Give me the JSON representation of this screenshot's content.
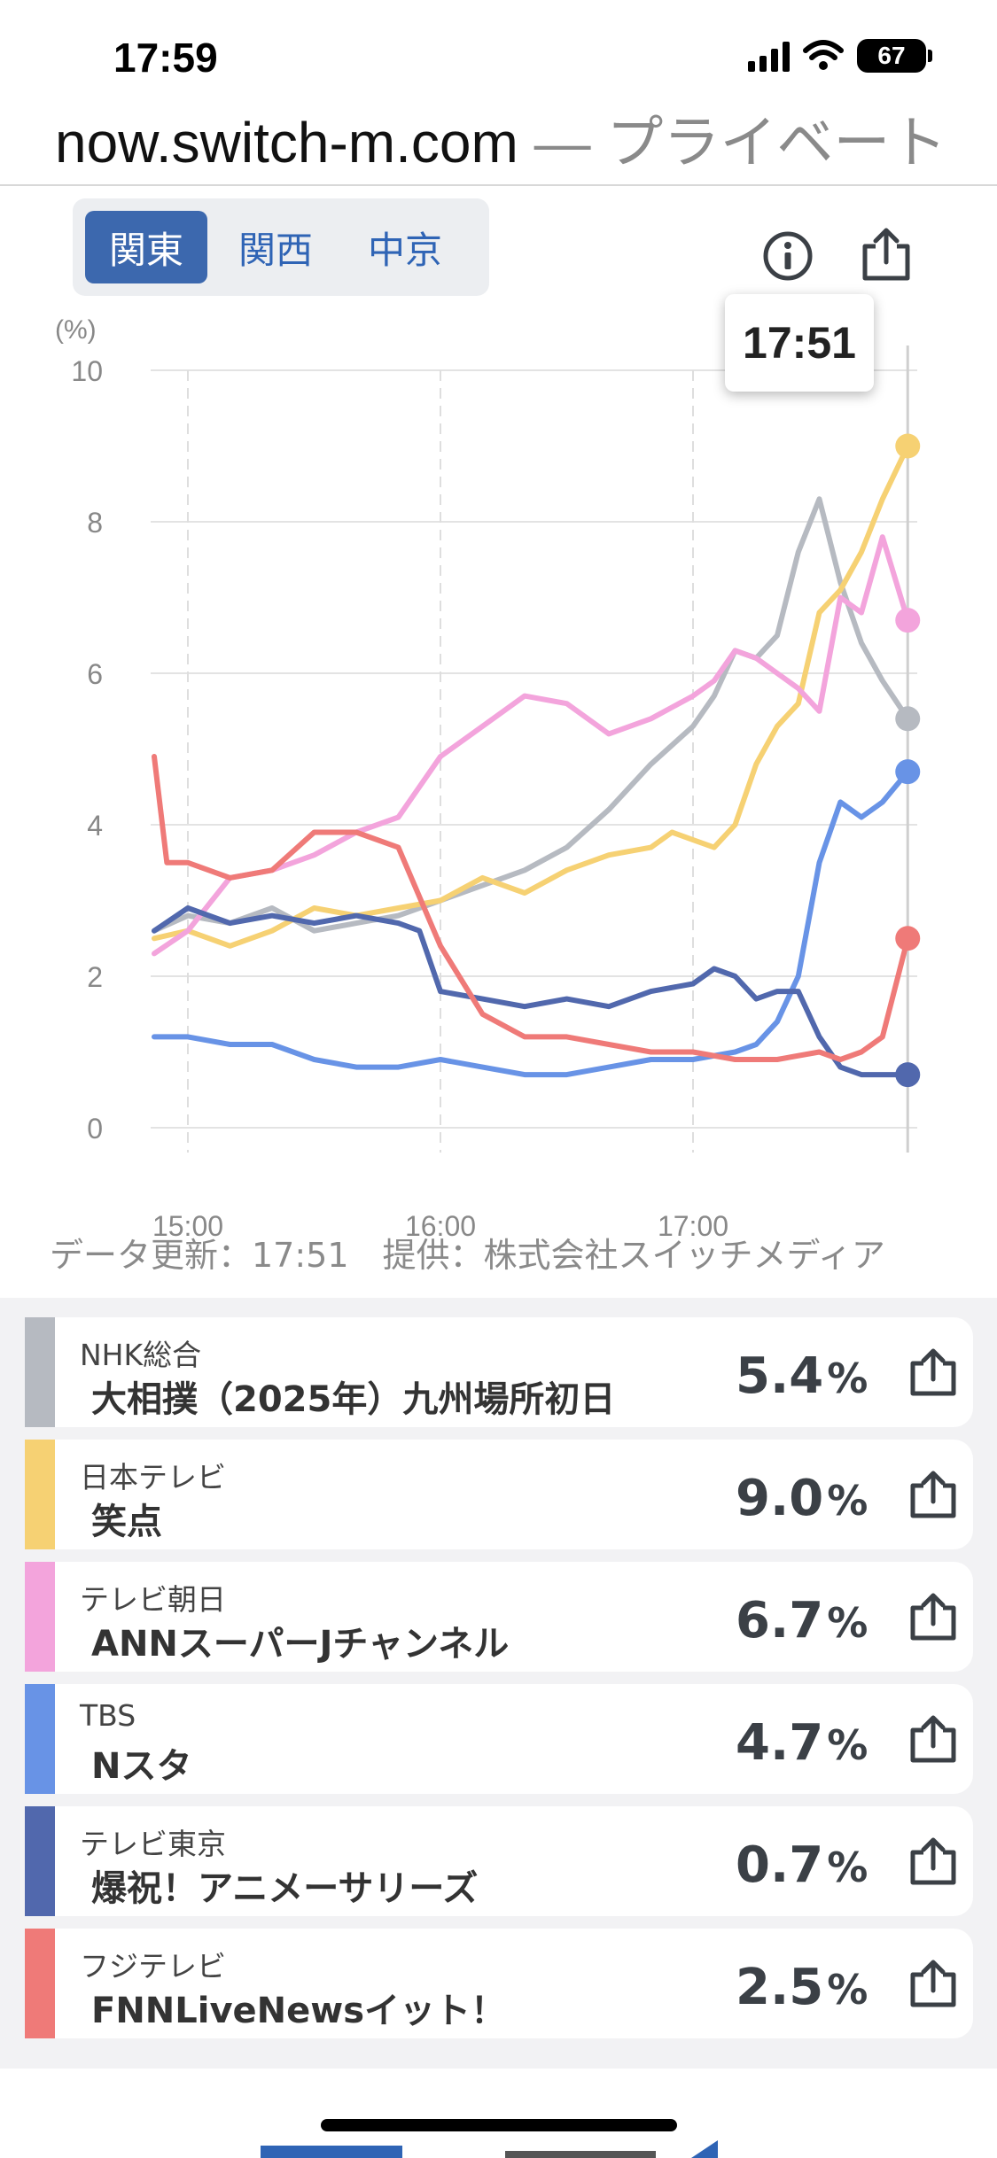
{
  "status_bar": {
    "time": "17:59",
    "battery": "67"
  },
  "url_bar": {
    "domain": "now.switch-m.com",
    "separator": " — ",
    "mode": "プライベート"
  },
  "region_tabs": [
    {
      "label": "関東",
      "active": true
    },
    {
      "label": "関西",
      "active": false
    },
    {
      "label": "中京",
      "active": false
    }
  ],
  "chart_data": {
    "type": "line",
    "title": "",
    "ylabel": "(%)",
    "xlabel": "",
    "ylim": [
      0,
      10
    ],
    "yticks": [
      0,
      2,
      4,
      6,
      8,
      10
    ],
    "xtick_labels": [
      "15:00",
      "16:00",
      "17:00"
    ],
    "grid": true,
    "tooltip_time": "17:51",
    "series": [
      {
        "key": "nhk",
        "color": "#b6bac1",
        "x": [
          "14:52",
          "15:00",
          "15:10",
          "15:20",
          "15:30",
          "15:40",
          "15:50",
          "16:00",
          "16:10",
          "16:20",
          "16:30",
          "16:40",
          "16:50",
          "17:00",
          "17:05",
          "17:10",
          "17:15",
          "17:20",
          "17:25",
          "17:30",
          "17:35",
          "17:40",
          "17:45",
          "17:51"
        ],
        "y": [
          2.6,
          2.8,
          2.7,
          2.9,
          2.6,
          2.7,
          2.8,
          3.0,
          3.2,
          3.4,
          3.7,
          4.2,
          4.8,
          5.3,
          5.7,
          6.3,
          6.2,
          6.5,
          7.6,
          8.3,
          7.2,
          6.4,
          5.9,
          5.4
        ]
      },
      {
        "key": "ntv",
        "color": "#f6d173",
        "x": [
          "14:52",
          "15:00",
          "15:10",
          "15:20",
          "15:30",
          "15:40",
          "15:50",
          "16:00",
          "16:10",
          "16:20",
          "16:30",
          "16:40",
          "16:50",
          "16:55",
          "17:00",
          "17:05",
          "17:10",
          "17:15",
          "17:20",
          "17:25",
          "17:30",
          "17:35",
          "17:40",
          "17:45",
          "17:51"
        ],
        "y": [
          2.5,
          2.6,
          2.4,
          2.6,
          2.9,
          2.8,
          2.9,
          3.0,
          3.3,
          3.1,
          3.4,
          3.6,
          3.7,
          3.9,
          3.8,
          3.7,
          4.0,
          4.8,
          5.3,
          5.6,
          6.8,
          7.1,
          7.6,
          8.3,
          9.0
        ]
      },
      {
        "key": "ex",
        "color": "#f3a4dc",
        "x": [
          "14:52",
          "15:00",
          "15:10",
          "15:20",
          "15:30",
          "15:40",
          "15:50",
          "16:00",
          "16:10",
          "16:20",
          "16:30",
          "16:40",
          "16:50",
          "17:00",
          "17:05",
          "17:10",
          "17:15",
          "17:20",
          "17:25",
          "17:30",
          "17:35",
          "17:40",
          "17:45",
          "17:51"
        ],
        "y": [
          2.3,
          2.6,
          3.3,
          3.4,
          3.6,
          3.9,
          4.1,
          4.9,
          5.3,
          5.7,
          5.6,
          5.2,
          5.4,
          5.7,
          5.9,
          6.3,
          6.2,
          6.0,
          5.8,
          5.5,
          7.0,
          6.8,
          7.8,
          6.7
        ]
      },
      {
        "key": "tbs",
        "color": "#6893e6",
        "x": [
          "14:52",
          "15:00",
          "15:10",
          "15:20",
          "15:30",
          "15:40",
          "15:50",
          "16:00",
          "16:10",
          "16:20",
          "16:30",
          "16:40",
          "16:50",
          "17:00",
          "17:10",
          "17:15",
          "17:20",
          "17:25",
          "17:30",
          "17:35",
          "17:40",
          "17:45",
          "17:51"
        ],
        "y": [
          1.2,
          1.2,
          1.1,
          1.1,
          0.9,
          0.8,
          0.8,
          0.9,
          0.8,
          0.7,
          0.7,
          0.8,
          0.9,
          0.9,
          1.0,
          1.1,
          1.4,
          2.0,
          3.5,
          4.3,
          4.1,
          4.3,
          4.7
        ]
      },
      {
        "key": "tx",
        "color": "#5168ad",
        "x": [
          "14:52",
          "15:00",
          "15:10",
          "15:20",
          "15:30",
          "15:40",
          "15:50",
          "15:55",
          "16:00",
          "16:10",
          "16:20",
          "16:30",
          "16:40",
          "16:50",
          "17:00",
          "17:05",
          "17:10",
          "17:15",
          "17:20",
          "17:25",
          "17:30",
          "17:35",
          "17:40",
          "17:45",
          "17:51"
        ],
        "y": [
          2.6,
          2.9,
          2.7,
          2.8,
          2.7,
          2.8,
          2.7,
          2.6,
          1.8,
          1.7,
          1.6,
          1.7,
          1.6,
          1.8,
          1.9,
          2.1,
          2.0,
          1.7,
          1.8,
          1.8,
          1.2,
          0.8,
          0.7,
          0.7,
          0.7
        ]
      },
      {
        "key": "cx",
        "color": "#ef7a78",
        "x": [
          "14:52",
          "14:55",
          "15:00",
          "15:10",
          "15:20",
          "15:30",
          "15:40",
          "15:50",
          "16:00",
          "16:10",
          "16:20",
          "16:30",
          "16:40",
          "16:50",
          "17:00",
          "17:10",
          "17:20",
          "17:30",
          "17:35",
          "17:40",
          "17:45",
          "17:51"
        ],
        "y": [
          4.9,
          3.5,
          3.5,
          3.3,
          3.4,
          3.9,
          3.9,
          3.7,
          2.4,
          1.5,
          1.2,
          1.2,
          1.1,
          1.0,
          1.0,
          0.9,
          0.9,
          1.0,
          0.9,
          1.0,
          1.2,
          2.5
        ]
      }
    ]
  },
  "data_note": "データ更新：17:51　提供：株式会社スイッチメディア",
  "channels": [
    {
      "channel": "NHK総合",
      "program": "大相撲（2025年）九州場所初日",
      "rating": "5.4",
      "unit": "%",
      "color": "#b6bac1"
    },
    {
      "channel": "日本テレビ",
      "program": "笑点",
      "rating": "9.0",
      "unit": "%",
      "color": "#f6d173"
    },
    {
      "channel": "テレビ朝日",
      "program": "ANNスーパーJチャンネル",
      "rating": "6.7",
      "unit": "%",
      "color": "#f3a4dc"
    },
    {
      "channel": "TBS",
      "program": "Nスタ",
      "rating": "4.7",
      "unit": "%",
      "color": "#6893e6"
    },
    {
      "channel": "テレビ東京",
      "program": "爆祝！アニメーサリーズ",
      "rating": "0.7",
      "unit": "%",
      "color": "#5168ad"
    },
    {
      "channel": "フジテレビ",
      "program": "FNNLiveNewsイット！",
      "rating": "2.5",
      "unit": "%",
      "color": "#ef7a78"
    }
  ],
  "icons": {
    "info": "info-icon",
    "share": "share-icon"
  }
}
